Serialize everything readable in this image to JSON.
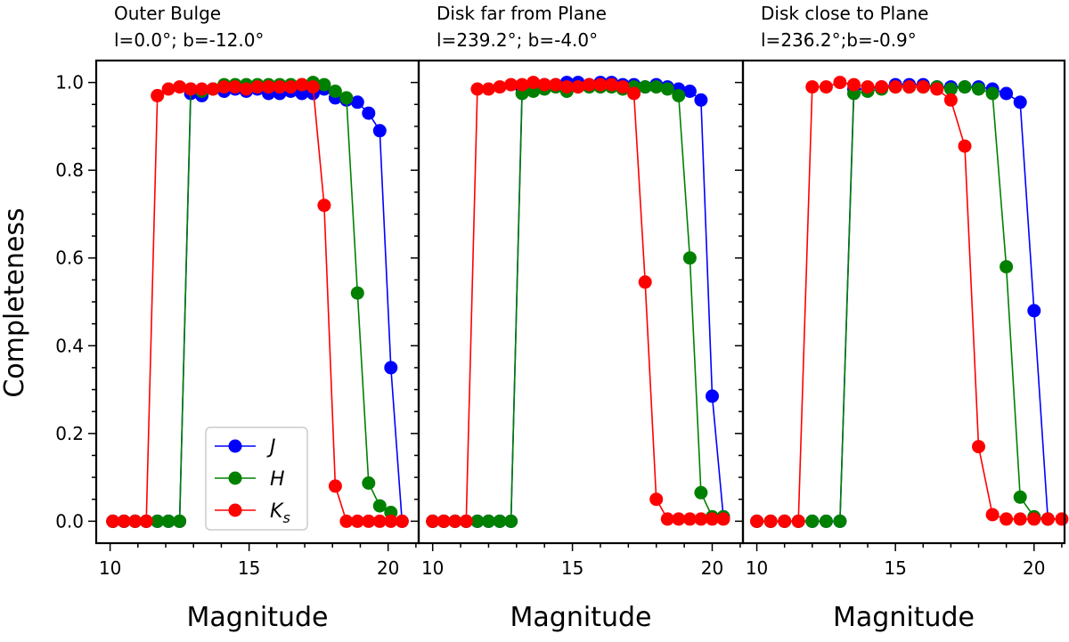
{
  "figure": {
    "ylabel": "Completeness",
    "legend": {
      "placement": "lower-center of first panel",
      "entries": [
        {
          "label": "J",
          "sub": "",
          "color": "#0000ff"
        },
        {
          "label": "H",
          "sub": "",
          "color": "#008000"
        },
        {
          "label": "K",
          "sub": "s",
          "color": "#ff0000"
        }
      ]
    }
  },
  "chart_data": [
    {
      "type": "line",
      "title": "Outer Bulge",
      "subtitle": "l=0.0°; b=-12.0°",
      "xlabel": "Magnitude",
      "ylabel": "Completeness",
      "xlim": [
        9.5,
        21.1
      ],
      "ylim": [
        -0.05,
        1.05
      ],
      "xticks": [
        10,
        15,
        20
      ],
      "yticks": [
        0.0,
        0.2,
        0.4,
        0.6,
        0.8,
        1.0
      ],
      "series": [
        {
          "name": "J",
          "color": "#0000ff",
          "points": [
            [
              10.1,
              0.0
            ],
            [
              10.5,
              0.0
            ],
            [
              10.9,
              0.0
            ],
            [
              11.3,
              0.0
            ],
            [
              11.7,
              0.0
            ],
            [
              12.1,
              0.0
            ],
            [
              12.5,
              0.0
            ],
            [
              12.9,
              0.975
            ],
            [
              13.3,
              0.97
            ],
            [
              13.7,
              0.985
            ],
            [
              14.1,
              0.98
            ],
            [
              14.5,
              0.985
            ],
            [
              14.9,
              0.98
            ],
            [
              15.3,
              0.985
            ],
            [
              15.7,
              0.975
            ],
            [
              16.1,
              0.975
            ],
            [
              16.5,
              0.98
            ],
            [
              16.9,
              0.975
            ],
            [
              17.3,
              0.975
            ],
            [
              17.7,
              0.985
            ],
            [
              18.1,
              0.965
            ],
            [
              18.5,
              0.96
            ],
            [
              18.9,
              0.955
            ],
            [
              19.3,
              0.93
            ],
            [
              19.7,
              0.89
            ],
            [
              20.1,
              0.35
            ],
            [
              20.5,
              0.0
            ]
          ]
        },
        {
          "name": "H",
          "color": "#008000",
          "points": [
            [
              10.1,
              0.0
            ],
            [
              10.5,
              0.0
            ],
            [
              10.9,
              0.0
            ],
            [
              11.3,
              0.0
            ],
            [
              11.7,
              0.0
            ],
            [
              12.1,
              0.0
            ],
            [
              12.5,
              0.0
            ],
            [
              12.9,
              0.985
            ],
            [
              13.3,
              0.98
            ],
            [
              13.7,
              0.985
            ],
            [
              14.1,
              0.995
            ],
            [
              14.5,
              0.995
            ],
            [
              14.9,
              0.995
            ],
            [
              15.3,
              0.995
            ],
            [
              15.7,
              0.995
            ],
            [
              16.1,
              0.995
            ],
            [
              16.5,
              0.995
            ],
            [
              16.9,
              0.995
            ],
            [
              17.3,
              1.0
            ],
            [
              17.7,
              0.995
            ],
            [
              18.1,
              0.98
            ],
            [
              18.5,
              0.965
            ],
            [
              18.9,
              0.52
            ],
            [
              19.3,
              0.087
            ],
            [
              19.7,
              0.035
            ],
            [
              20.1,
              0.02
            ]
          ]
        },
        {
          "name": "Ks",
          "color": "#ff0000",
          "points": [
            [
              10.1,
              0.0
            ],
            [
              10.5,
              0.0
            ],
            [
              10.9,
              0.0
            ],
            [
              11.3,
              0.0
            ],
            [
              11.7,
              0.97
            ],
            [
              12.1,
              0.985
            ],
            [
              12.5,
              0.99
            ],
            [
              12.9,
              0.985
            ],
            [
              13.3,
              0.985
            ],
            [
              13.7,
              0.985
            ],
            [
              14.1,
              0.99
            ],
            [
              14.5,
              0.99
            ],
            [
              14.9,
              0.985
            ],
            [
              15.3,
              0.99
            ],
            [
              15.7,
              0.99
            ],
            [
              16.1,
              0.99
            ],
            [
              16.5,
              0.99
            ],
            [
              16.9,
              0.995
            ],
            [
              17.3,
              0.99
            ],
            [
              17.7,
              0.72
            ],
            [
              18.1,
              0.08
            ],
            [
              18.5,
              0.0
            ],
            [
              18.9,
              0.0
            ],
            [
              19.3,
              0.0
            ],
            [
              19.7,
              0.0
            ],
            [
              20.1,
              0.0
            ],
            [
              20.5,
              0.0
            ]
          ]
        }
      ]
    },
    {
      "type": "line",
      "title": "Disk far from Plane",
      "subtitle": "l=239.2°; b=-4.0°",
      "xlabel": "Magnitude",
      "ylabel": "",
      "xlim": [
        9.5,
        21.1
      ],
      "ylim": [
        -0.05,
        1.05
      ],
      "xticks": [
        10,
        15,
        20
      ],
      "yticks": [
        0.0,
        0.2,
        0.4,
        0.6,
        0.8,
        1.0
      ],
      "series": [
        {
          "name": "J",
          "color": "#0000ff",
          "points": [
            [
              10.0,
              0.0
            ],
            [
              10.4,
              0.0
            ],
            [
              10.8,
              0.0
            ],
            [
              11.2,
              0.0
            ],
            [
              11.6,
              0.0
            ],
            [
              12.0,
              0.0
            ],
            [
              12.4,
              0.0
            ],
            [
              12.8,
              0.0
            ],
            [
              13.2,
              0.985
            ],
            [
              13.6,
              0.99
            ],
            [
              14.0,
              0.995
            ],
            [
              14.4,
              0.995
            ],
            [
              14.8,
              1.0
            ],
            [
              15.2,
              1.0
            ],
            [
              15.6,
              0.995
            ],
            [
              16.0,
              1.0
            ],
            [
              16.4,
              1.0
            ],
            [
              16.8,
              0.995
            ],
            [
              17.2,
              0.995
            ],
            [
              17.6,
              0.99
            ],
            [
              18.0,
              0.995
            ],
            [
              18.4,
              0.99
            ],
            [
              18.8,
              0.985
            ],
            [
              19.2,
              0.98
            ],
            [
              19.6,
              0.96
            ],
            [
              20.0,
              0.285
            ],
            [
              20.4,
              0.01
            ]
          ]
        },
        {
          "name": "H",
          "color": "#008000",
          "points": [
            [
              10.0,
              0.0
            ],
            [
              10.4,
              0.0
            ],
            [
              10.8,
              0.0
            ],
            [
              11.2,
              0.0
            ],
            [
              11.6,
              0.0
            ],
            [
              12.0,
              0.0
            ],
            [
              12.4,
              0.0
            ],
            [
              12.8,
              0.0
            ],
            [
              13.2,
              0.975
            ],
            [
              13.6,
              0.98
            ],
            [
              14.0,
              0.985
            ],
            [
              14.4,
              0.99
            ],
            [
              14.8,
              0.98
            ],
            [
              15.2,
              0.99
            ],
            [
              15.6,
              0.99
            ],
            [
              16.0,
              0.99
            ],
            [
              16.4,
              0.99
            ],
            [
              16.8,
              0.985
            ],
            [
              17.2,
              0.99
            ],
            [
              17.6,
              0.99
            ],
            [
              18.0,
              0.99
            ],
            [
              18.4,
              0.985
            ],
            [
              18.8,
              0.97
            ],
            [
              19.2,
              0.6
            ],
            [
              19.6,
              0.065
            ],
            [
              20.0,
              0.01
            ],
            [
              20.4,
              0.01
            ]
          ]
        },
        {
          "name": "Ks",
          "color": "#ff0000",
          "points": [
            [
              10.0,
              0.0
            ],
            [
              10.4,
              0.0
            ],
            [
              10.8,
              0.0
            ],
            [
              11.2,
              0.0
            ],
            [
              11.6,
              0.985
            ],
            [
              12.0,
              0.985
            ],
            [
              12.4,
              0.99
            ],
            [
              12.8,
              0.995
            ],
            [
              13.2,
              0.995
            ],
            [
              13.6,
              1.0
            ],
            [
              14.0,
              0.995
            ],
            [
              14.4,
              0.995
            ],
            [
              14.8,
              0.99
            ],
            [
              15.2,
              0.99
            ],
            [
              15.6,
              0.995
            ],
            [
              16.0,
              0.995
            ],
            [
              16.4,
              0.995
            ],
            [
              16.8,
              0.99
            ],
            [
              17.2,
              0.975
            ],
            [
              17.6,
              0.545
            ],
            [
              18.0,
              0.05
            ],
            [
              18.4,
              0.005
            ],
            [
              18.8,
              0.005
            ],
            [
              19.2,
              0.005
            ],
            [
              19.6,
              0.005
            ],
            [
              20.0,
              0.005
            ],
            [
              20.4,
              0.005
            ]
          ]
        }
      ]
    },
    {
      "type": "line",
      "title": "Disk close to Plane",
      "subtitle": "l=236.2°;b=-0.9°",
      "xlabel": "Magnitude",
      "ylabel": "",
      "xlim": [
        9.5,
        21.1
      ],
      "ylim": [
        -0.05,
        1.05
      ],
      "xticks": [
        10,
        15,
        20
      ],
      "yticks": [
        0.0,
        0.2,
        0.4,
        0.6,
        0.8,
        1.0
      ],
      "series": [
        {
          "name": "J",
          "color": "#0000ff",
          "points": [
            [
              10.0,
              0.0
            ],
            [
              10.5,
              0.0
            ],
            [
              11.0,
              0.0
            ],
            [
              11.5,
              0.0
            ],
            [
              12.0,
              0.0
            ],
            [
              12.5,
              0.0
            ],
            [
              13.0,
              0.0
            ],
            [
              13.5,
              0.985
            ],
            [
              14.0,
              0.985
            ],
            [
              14.5,
              0.99
            ],
            [
              15.0,
              0.995
            ],
            [
              15.5,
              0.995
            ],
            [
              16.0,
              0.995
            ],
            [
              16.5,
              0.99
            ],
            [
              17.0,
              0.99
            ],
            [
              17.5,
              0.99
            ],
            [
              18.0,
              0.99
            ],
            [
              18.5,
              0.985
            ],
            [
              19.0,
              0.975
            ],
            [
              19.5,
              0.955
            ],
            [
              20.0,
              0.48
            ],
            [
              20.5,
              0.005
            ]
          ]
        },
        {
          "name": "H",
          "color": "#008000",
          "points": [
            [
              10.0,
              0.0
            ],
            [
              10.5,
              0.0
            ],
            [
              11.0,
              0.0
            ],
            [
              11.5,
              0.0
            ],
            [
              12.0,
              0.0
            ],
            [
              12.5,
              0.0
            ],
            [
              13.0,
              0.0
            ],
            [
              13.5,
              0.975
            ],
            [
              14.0,
              0.98
            ],
            [
              14.5,
              0.985
            ],
            [
              15.0,
              0.99
            ],
            [
              15.5,
              0.99
            ],
            [
              16.0,
              0.99
            ],
            [
              16.5,
              0.99
            ],
            [
              17.0,
              0.985
            ],
            [
              17.5,
              0.99
            ],
            [
              18.0,
              0.985
            ],
            [
              18.5,
              0.975
            ],
            [
              19.0,
              0.58
            ],
            [
              19.5,
              0.055
            ],
            [
              20.0,
              0.01
            ],
            [
              20.5,
              0.005
            ]
          ]
        },
        {
          "name": "Ks",
          "color": "#ff0000",
          "points": [
            [
              10.0,
              0.0
            ],
            [
              10.5,
              0.0
            ],
            [
              11.0,
              0.0
            ],
            [
              11.5,
              0.0
            ],
            [
              12.0,
              0.99
            ],
            [
              12.5,
              0.99
            ],
            [
              13.0,
              1.0
            ],
            [
              13.5,
              0.995
            ],
            [
              14.0,
              0.99
            ],
            [
              14.5,
              0.99
            ],
            [
              15.0,
              0.99
            ],
            [
              15.5,
              0.99
            ],
            [
              16.0,
              0.99
            ],
            [
              16.5,
              0.985
            ],
            [
              17.0,
              0.96
            ],
            [
              17.5,
              0.855
            ],
            [
              18.0,
              0.17
            ],
            [
              18.5,
              0.015
            ],
            [
              19.0,
              0.005
            ],
            [
              19.5,
              0.005
            ],
            [
              20.0,
              0.005
            ],
            [
              20.5,
              0.005
            ],
            [
              21.0,
              0.005
            ]
          ]
        }
      ]
    }
  ]
}
